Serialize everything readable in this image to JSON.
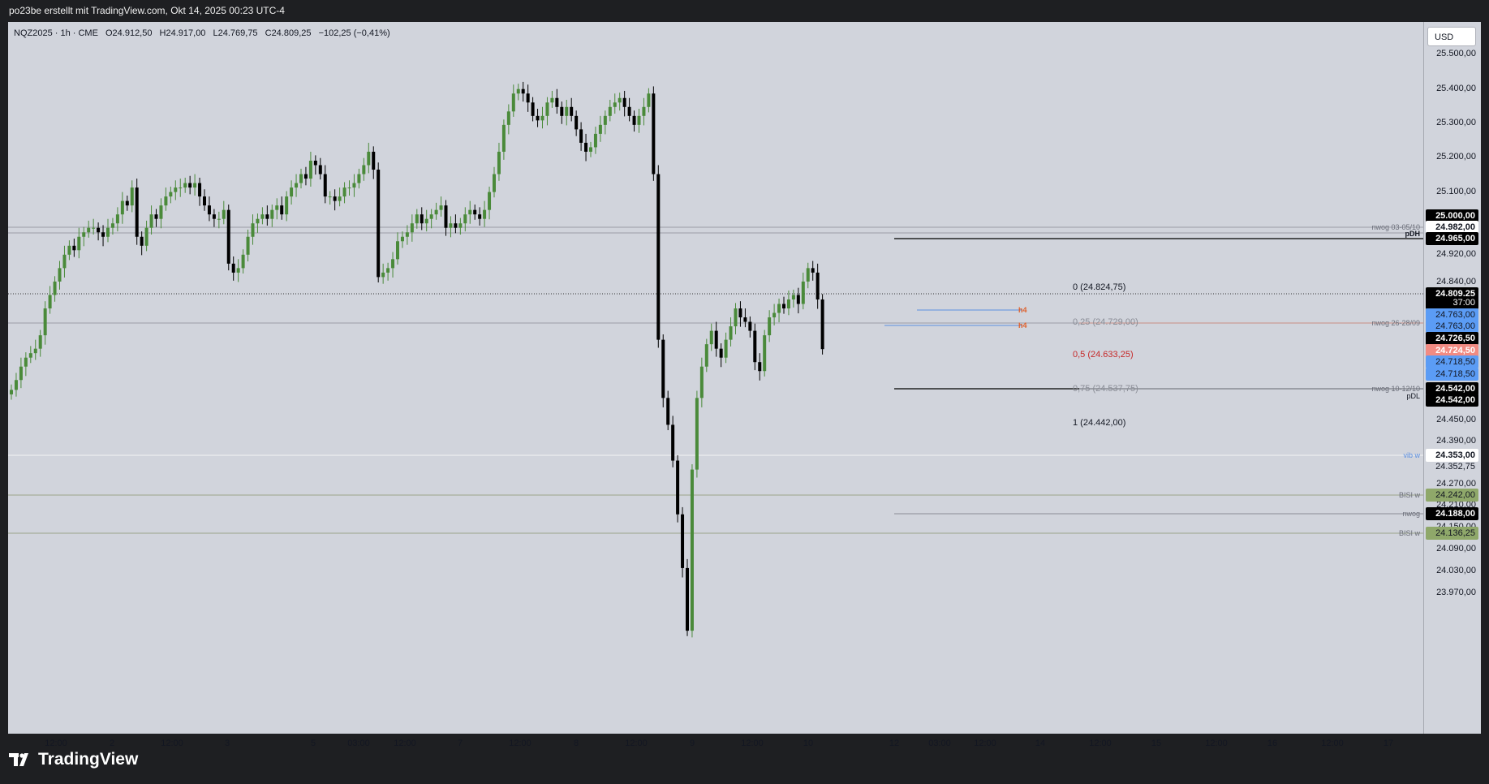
{
  "header": {
    "title": "po23be erstellt mit TradingView.com, Okt 14, 2025 00:23 UTC-4"
  },
  "legend": {
    "symbol": "NQZ2025 · 1h · CME",
    "open": "O24.912,50",
    "high": "H24.917,00",
    "low": "L24.769,75",
    "close": "C24.809,25",
    "change": "−102,25 (−0,41%)"
  },
  "price_axis": {
    "currency": "USD",
    "ticks": [
      "25.500,00",
      "25.400,00",
      "25.300,00",
      "25.200,00",
      "25.100,00",
      "24.920,00",
      "24.840,00",
      "24.450,00",
      "24.390,00",
      "24.270,00",
      "24.210,00",
      "24.150,00",
      "24.090,00",
      "24.030,00",
      "23.970,00"
    ],
    "tags": [
      {
        "text": "25.000,00",
        "style": "black"
      },
      {
        "text": "24.982,00",
        "style": "white"
      },
      {
        "text": "24.965,00",
        "style": "black"
      },
      {
        "text": "24.809,25",
        "style": "black"
      },
      {
        "text": "37:00",
        "style": "black-sub"
      },
      {
        "text": "24.763,00",
        "style": "blue"
      },
      {
        "text": "24.763,00",
        "style": "blue"
      },
      {
        "text": "24.726,50",
        "style": "black"
      },
      {
        "text": "24.724,50",
        "style": "red"
      },
      {
        "text": "24.718,50",
        "style": "blue"
      },
      {
        "text": "24.718,50",
        "style": "blue"
      },
      {
        "text": "24.542,00",
        "style": "black"
      },
      {
        "text": "24.542,00",
        "style": "black"
      },
      {
        "text": "24.353,00",
        "style": "white"
      },
      {
        "text": "24.352,75",
        "style": "plain"
      },
      {
        "text": "24.242,00",
        "style": "green"
      },
      {
        "text": "24.188,00",
        "style": "black"
      },
      {
        "text": "24.136,25",
        "style": "green"
      }
    ]
  },
  "time_axis": {
    "ticks": [
      "12:00",
      "2",
      "12:00",
      "3",
      "5",
      "03:00",
      "12:00",
      "7",
      "12:00",
      "8",
      "12:00",
      "9",
      "12:00",
      "10",
      "12",
      "03:00",
      "12:00",
      "14",
      "12:00",
      "15",
      "12:00",
      "16",
      "12:00",
      "17"
    ]
  },
  "levels": {
    "nwog1": "nwog 03-05/10",
    "pdh": "pDH",
    "nwog2": "nwog 26-28/09",
    "nwog3": "nwog 10-12/10",
    "pdl": "pDL",
    "vib": "vib w",
    "bisi1": "BISI w",
    "nwog4": "nwog",
    "bisi2": "BISI w",
    "h4a": "h4",
    "h4b": "h4"
  },
  "fib": {
    "f0": "0 (24.824,75)",
    "f25": "0,25 (24.729,00)",
    "f50": "0,5 (24.633,25)",
    "f75": "0,75 (24.537,75)",
    "f100": "1 (24.442,00)"
  },
  "colors": {
    "background": "#d1d4dc",
    "bull": "#4a8a3a",
    "bear": "#000000",
    "tag_blue": "#5b9cf5",
    "tag_red": "#f28b82",
    "tag_green": "#8fa86a",
    "fib_red": "#c62828"
  },
  "chart_data": {
    "type": "candlestick",
    "ylim": [
      23950,
      25540
    ],
    "series": [
      {
        "values": [
          24718,
          24740,
          24770,
          24790,
          24800,
          24810,
          24840,
          24900,
          24930,
          24960,
          24990,
          25020,
          25040,
          25030,
          25060,
          25070,
          25080,
          25080,
          25070,
          25060,
          25080,
          25090,
          25110,
          25140,
          25130,
          25170,
          25060,
          25040,
          25080,
          25110,
          25100,
          25130,
          25150,
          25160,
          25170,
          25170,
          25180,
          25170,
          25180,
          25150,
          25130,
          25110,
          25100,
          25100,
          25120,
          25000,
          24980,
          24990,
          25020,
          25060,
          25090,
          25100,
          25110,
          25100,
          25120,
          25130,
          25110,
          25150,
          25170,
          25180,
          25200,
          25190,
          25230,
          25220,
          25200,
          25150,
          25150,
          25140,
          25150,
          25170,
          25170,
          25180,
          25200,
          25220,
          25250,
          25210,
          24970,
          24980,
          24990,
          25010,
          25050,
          25060,
          25070,
          25090,
          25110,
          25090,
          25100,
          25110,
          25120,
          25130,
          25080,
          25090,
          25080,
          25090,
          25110,
          25120,
          25110,
          25100,
          25120,
          25160,
          25200,
          25250,
          25310,
          25340,
          25380,
          25390,
          25380,
          25360,
          25330,
          25320,
          25330,
          25360,
          25370,
          25350,
          25330,
          25350,
          25330,
          25300,
          25270,
          25250,
          25260,
          25290,
          25310,
          25330,
          25350,
          25360,
          25370,
          25350,
          25330,
          25310,
          25330,
          25350,
          25380,
          25200,
          24830,
          24700,
          24640,
          24560,
          24440,
          24320,
          24180,
          24540,
          24700,
          24770,
          24820,
          24850,
          24810,
          24790,
          24830,
          24860,
          24900,
          24880,
          24870,
          24850,
          24780,
          24760,
          24840,
          24880,
          24890,
          24910,
          24900,
          24920,
          24930,
          24910,
          24960,
          24990,
          24980,
          24920,
          24809
        ]
      }
    ]
  }
}
